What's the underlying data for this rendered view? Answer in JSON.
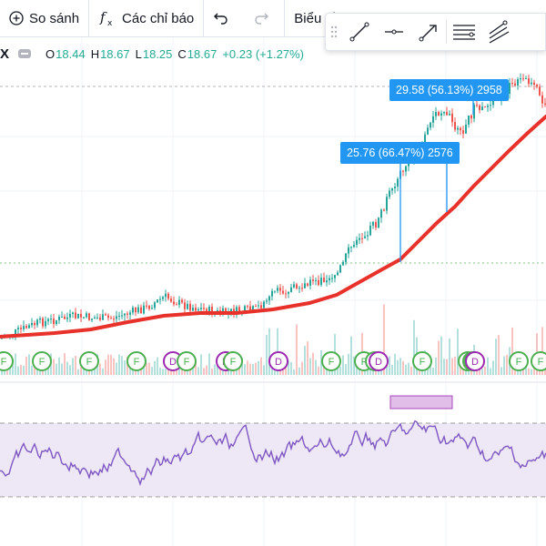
{
  "toolbar": {
    "compare_label": "So sánh",
    "indicators_label": "Các chỉ báo",
    "chart_type_label": "Biểu đồ"
  },
  "drawing_tools": [
    "trend-line-icon",
    "horizontal-ray-icon",
    "arrow-icon",
    "parallel-channel-icon",
    "multi-line-icon"
  ],
  "legend": {
    "symbol": "X",
    "open_label": "O",
    "open": "18.44",
    "high_label": "H",
    "high": "18.67",
    "low_label": "L",
    "low": "18.25",
    "close_label": "C",
    "close": "18.67",
    "change": "+0.23 (+1.27%)",
    "up_color": "#22ab94"
  },
  "callouts": {
    "first": "25.76 (66.47%) 2576",
    "second": "29.58 (56.13%) 2958",
    "color": "#2196f3"
  },
  "event_markers": [
    "F",
    "F",
    "F",
    "F",
    "D",
    "F",
    "D",
    "F",
    "D",
    "F",
    "F",
    "F",
    "D",
    "F",
    "F",
    "F",
    "F",
    "D",
    "F",
    "F"
  ],
  "colors": {
    "ma_line": "#e8312a",
    "candle_up": "#26a69a",
    "candle_down": "#ef5350",
    "rsi_line": "#7e57c2",
    "rsi_band": "#ede7f6",
    "marker_f": "#4caf50",
    "marker_d": "#9c27b0"
  }
}
